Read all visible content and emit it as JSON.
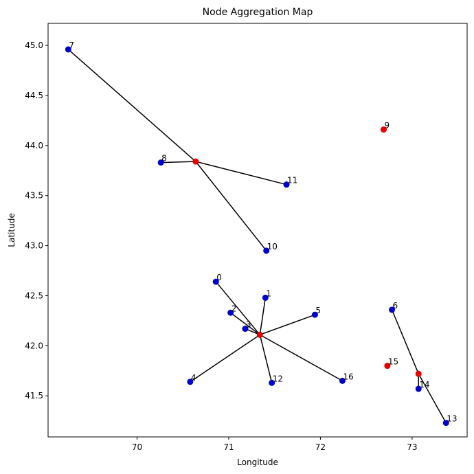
{
  "chart_data": {
    "type": "scatter",
    "title": "Node Aggregation Map",
    "xlabel": "Longitude",
    "ylabel": "Latitude",
    "xlim": [
      69.03,
      73.6
    ],
    "ylim": [
      41.09,
      45.22
    ],
    "xticks": [
      70,
      71,
      72,
      73
    ],
    "yticks": [
      41.5,
      42.0,
      42.5,
      43.0,
      43.5,
      44.0,
      44.5,
      45.0
    ],
    "xtick_labels": [
      "70",
      "71",
      "72",
      "73"
    ],
    "ytick_labels": [
      "41.5",
      "42.0",
      "42.5",
      "43.0",
      "43.5",
      "44.0",
      "44.5",
      "45.0"
    ],
    "grid": false,
    "colors": {
      "node": "#0000cc",
      "aggregator": "#e60000",
      "link": "#000000"
    },
    "nodes": [
      {
        "label": "0",
        "x": 70.86,
        "y": 42.64
      },
      {
        "label": "1",
        "x": 71.4,
        "y": 42.48
      },
      {
        "label": "2",
        "x": 71.02,
        "y": 42.33
      },
      {
        "label": "3",
        "x": 71.18,
        "y": 42.17
      },
      {
        "label": "4",
        "x": 70.58,
        "y": 41.64
      },
      {
        "label": "5",
        "x": 71.94,
        "y": 42.31
      },
      {
        "label": "6",
        "x": 72.78,
        "y": 42.36
      },
      {
        "label": "7",
        "x": 69.25,
        "y": 44.96
      },
      {
        "label": "8",
        "x": 70.26,
        "y": 43.83
      },
      {
        "label": "10",
        "x": 71.41,
        "y": 42.95
      },
      {
        "label": "11",
        "x": 71.63,
        "y": 43.61
      },
      {
        "label": "12",
        "x": 71.47,
        "y": 41.63
      },
      {
        "label": "13",
        "x": 73.37,
        "y": 41.23
      },
      {
        "label": "14",
        "x": 73.07,
        "y": 41.57
      },
      {
        "label": "16",
        "x": 72.24,
        "y": 41.65
      }
    ],
    "aggregators": [
      {
        "label": "9",
        "x": 72.69,
        "y": 44.16
      },
      {
        "label": "15",
        "x": 72.73,
        "y": 41.8
      },
      {
        "label": "",
        "x": 70.64,
        "y": 43.84
      },
      {
        "label": "",
        "x": 71.34,
        "y": 42.11
      },
      {
        "label": "",
        "x": 73.07,
        "y": 41.72
      }
    ],
    "links": [
      {
        "from": [
          70.64,
          43.84
        ],
        "to": [
          69.25,
          44.96
        ]
      },
      {
        "from": [
          70.64,
          43.84
        ],
        "to": [
          70.26,
          43.83
        ]
      },
      {
        "from": [
          70.64,
          43.84
        ],
        "to": [
          71.63,
          43.61
        ]
      },
      {
        "from": [
          70.64,
          43.84
        ],
        "to": [
          71.41,
          42.95
        ]
      },
      {
        "from": [
          71.34,
          42.11
        ],
        "to": [
          70.86,
          42.64
        ]
      },
      {
        "from": [
          71.34,
          42.11
        ],
        "to": [
          71.4,
          42.48
        ]
      },
      {
        "from": [
          71.34,
          42.11
        ],
        "to": [
          71.02,
          42.33
        ]
      },
      {
        "from": [
          71.34,
          42.11
        ],
        "to": [
          71.18,
          42.17
        ]
      },
      {
        "from": [
          71.34,
          42.11
        ],
        "to": [
          71.94,
          42.31
        ]
      },
      {
        "from": [
          71.34,
          42.11
        ],
        "to": [
          70.58,
          41.64
        ]
      },
      {
        "from": [
          71.34,
          42.11
        ],
        "to": [
          71.47,
          41.63
        ]
      },
      {
        "from": [
          71.34,
          42.11
        ],
        "to": [
          72.24,
          41.65
        ]
      },
      {
        "from": [
          73.07,
          41.72
        ],
        "to": [
          72.78,
          42.36
        ]
      },
      {
        "from": [
          73.07,
          41.72
        ],
        "to": [
          73.07,
          41.57
        ]
      },
      {
        "from": [
          73.07,
          41.72
        ],
        "to": [
          73.37,
          41.23
        ]
      }
    ]
  }
}
